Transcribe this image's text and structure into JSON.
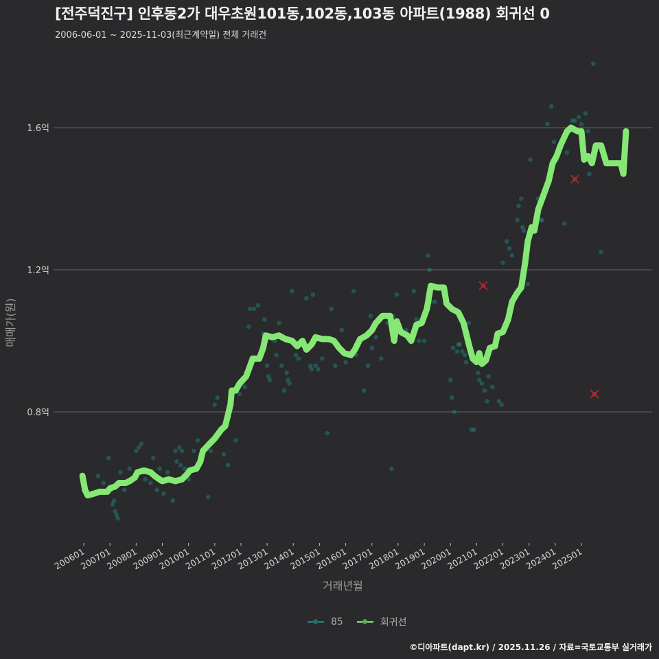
{
  "header": {
    "title": "[전주덕진구] 인후동2가 대우초원101동,102동,103동 아파트(1988) 회귀선 0",
    "subtitle": "2006-06-01 ~ 2025-11-03(최근계약일) 전체 거래건"
  },
  "axes": {
    "ylabel": "매매가(원)",
    "xlabel": "거래년월"
  },
  "legend": {
    "items": [
      {
        "label": "85",
        "color": "#1f8a85"
      },
      {
        "label": "회귀선",
        "color": "#86e874"
      }
    ]
  },
  "footer": {
    "credit": "©디아파트(dapt.kr) / 2025.11.26 / 자료=국토교통부 실거래가"
  },
  "colors": {
    "background": "#2a292b",
    "grid": "#5a5a5a",
    "scatter": "#1f8a85",
    "regression": "#86e874",
    "outlier": "#c0262c"
  },
  "chart_data": {
    "type": "scatter",
    "title": "[전주덕진구] 인후동2가 대우초원101동,102동,103동 아파트(1988) 회귀선",
    "subtitle": "2006-06-01 ~ 2025-11-03(최근계약일) 전체 거래건",
    "xlabel": "거래년월",
    "ylabel": "매매가(원)",
    "x_ticks": [
      "200601",
      "200701",
      "200801",
      "200901",
      "201001",
      "201101",
      "201201",
      "201301",
      "201401",
      "201501",
      "201601",
      "201701",
      "201801",
      "201901",
      "202001",
      "202101",
      "202201",
      "202301",
      "202401",
      "202501"
    ],
    "y_ticks": [
      {
        "value": 0.8,
        "label": "0.8억"
      },
      {
        "value": 1.2,
        "label": "1.2억"
      },
      {
        "value": 1.6,
        "label": "1.6억"
      }
    ],
    "ylim": [
      0.46,
      1.78
    ],
    "grid": true,
    "legend_position": "bottom",
    "series": [
      {
        "name": "85",
        "type": "scatter",
        "points": [
          [
            2006.55,
            0.62
          ],
          [
            2006.75,
            0.6
          ],
          [
            2006.95,
            0.67
          ],
          [
            2007.05,
            0.58
          ],
          [
            2007.1,
            0.54
          ],
          [
            2007.2,
            0.52
          ],
          [
            2007.15,
            0.55
          ],
          [
            2007.3,
            0.5
          ],
          [
            2007.25,
            0.51
          ],
          [
            2007.4,
            0.63
          ],
          [
            2007.55,
            0.58
          ],
          [
            2007.75,
            0.64
          ],
          [
            2008.0,
            0.69
          ],
          [
            2008.1,
            0.7
          ],
          [
            2008.2,
            0.71
          ],
          [
            2008.35,
            0.61
          ],
          [
            2008.55,
            0.6
          ],
          [
            2008.65,
            0.67
          ],
          [
            2008.8,
            0.58
          ],
          [
            2008.9,
            0.64
          ],
          [
            2009.05,
            0.57
          ],
          [
            2009.2,
            0.63
          ],
          [
            2009.4,
            0.55
          ],
          [
            2009.5,
            0.69
          ],
          [
            2009.55,
            0.66
          ],
          [
            2009.65,
            0.7
          ],
          [
            2009.7,
            0.65
          ],
          [
            2009.75,
            0.69
          ],
          [
            2009.85,
            0.64
          ],
          [
            2009.9,
            0.62
          ],
          [
            2010.0,
            0.61
          ],
          [
            2010.2,
            0.69
          ],
          [
            2010.35,
            0.72
          ],
          [
            2010.75,
            0.56
          ],
          [
            2010.85,
            0.69
          ],
          [
            2011.0,
            0.82
          ],
          [
            2011.1,
            0.84
          ],
          [
            2011.2,
            0.75
          ],
          [
            2011.35,
            0.68
          ],
          [
            2011.5,
            0.65
          ],
          [
            2011.8,
            0.72
          ],
          [
            2011.95,
            0.85
          ],
          [
            2012.05,
            0.88
          ],
          [
            2012.15,
            0.87
          ],
          [
            2012.3,
            1.04
          ],
          [
            2012.35,
            1.09
          ],
          [
            2012.5,
            1.09
          ],
          [
            2012.65,
            1.1
          ],
          [
            2012.85,
            1.02
          ],
          [
            2012.9,
            1.06
          ],
          [
            2013.0,
            0.93
          ],
          [
            2013.05,
            0.9
          ],
          [
            2013.1,
            0.89
          ],
          [
            2013.3,
            1.0
          ],
          [
            2013.35,
            0.96
          ],
          [
            2013.45,
            1.05
          ],
          [
            2013.55,
            0.93
          ],
          [
            2013.65,
            0.86
          ],
          [
            2013.75,
            0.91
          ],
          [
            2013.8,
            0.89
          ],
          [
            2013.85,
            0.88
          ],
          [
            2013.95,
            1.14
          ],
          [
            2014.1,
            0.96
          ],
          [
            2014.2,
            0.95
          ],
          [
            2014.5,
            1.12
          ],
          [
            2014.65,
            0.93
          ],
          [
            2014.7,
            0.92
          ],
          [
            2014.75,
            1.13
          ],
          [
            2014.85,
            0.93
          ],
          [
            2014.95,
            0.92
          ],
          [
            2015.1,
            0.95
          ],
          [
            2015.3,
            0.74
          ],
          [
            2015.45,
            1.09
          ],
          [
            2015.6,
            0.93
          ],
          [
            2015.85,
            1.03
          ],
          [
            2016.0,
            0.94
          ],
          [
            2016.3,
            1.14
          ],
          [
            2016.4,
            0.96
          ],
          [
            2016.5,
            0.99
          ],
          [
            2016.7,
            0.86
          ],
          [
            2016.85,
            0.93
          ],
          [
            2016.95,
            1.07
          ],
          [
            2017.0,
            0.98
          ],
          [
            2017.15,
            1.01
          ],
          [
            2017.35,
            0.95
          ],
          [
            2017.6,
            1.05
          ],
          [
            2017.75,
            0.64
          ],
          [
            2017.8,
            1.07
          ],
          [
            2017.95,
            1.13
          ],
          [
            2018.3,
            1.03
          ],
          [
            2018.6,
            1.14
          ],
          [
            2018.7,
            1.06
          ],
          [
            2018.8,
            1.0
          ],
          [
            2018.95,
            1.06
          ],
          [
            2019.0,
            1.0
          ],
          [
            2019.15,
            1.24
          ],
          [
            2019.2,
            1.2
          ],
          [
            2019.25,
            1.11
          ],
          [
            2019.4,
            1.11
          ],
          [
            2020.0,
            0.89
          ],
          [
            2020.05,
            0.84
          ],
          [
            2020.1,
            0.98
          ],
          [
            2020.15,
            0.8
          ],
          [
            2020.25,
            0.97
          ],
          [
            2020.3,
            0.99
          ],
          [
            2020.35,
            0.99
          ],
          [
            2020.45,
            0.97
          ],
          [
            2020.55,
            0.96
          ],
          [
            2020.6,
            0.94
          ],
          [
            2020.7,
            1.05
          ],
          [
            2020.8,
            0.75
          ],
          [
            2020.9,
            0.75
          ],
          [
            2020.95,
            0.95
          ],
          [
            2021.05,
            0.91
          ],
          [
            2021.1,
            0.89
          ],
          [
            2021.2,
            0.88
          ],
          [
            2021.3,
            0.86
          ],
          [
            2021.4,
            0.83
          ],
          [
            2021.45,
            0.9
          ],
          [
            2021.6,
            0.87
          ],
          [
            2021.85,
            0.83
          ],
          [
            2021.95,
            0.82
          ],
          [
            2022.0,
            1.22
          ],
          [
            2022.15,
            1.28
          ],
          [
            2022.25,
            1.26
          ],
          [
            2022.35,
            1.24
          ],
          [
            2022.55,
            1.34
          ],
          [
            2022.6,
            1.38
          ],
          [
            2022.7,
            1.4
          ],
          [
            2022.75,
            1.32
          ],
          [
            2022.8,
            1.31
          ],
          [
            2022.95,
            1.16
          ],
          [
            2023.05,
            1.51
          ],
          [
            2023.35,
            1.4
          ],
          [
            2023.45,
            1.34
          ],
          [
            2023.5,
            1.34
          ],
          [
            2023.7,
            1.61
          ],
          [
            2023.85,
            1.66
          ],
          [
            2023.95,
            1.56
          ],
          [
            2024.05,
            1.51
          ],
          [
            2024.35,
            1.33
          ],
          [
            2024.45,
            1.53
          ],
          [
            2024.55,
            1.59
          ],
          [
            2024.65,
            1.62
          ],
          [
            2024.75,
            1.62
          ],
          [
            2024.9,
            1.63
          ],
          [
            2025.0,
            1.61
          ],
          [
            2025.15,
            1.64
          ],
          [
            2025.25,
            1.59
          ],
          [
            2025.3,
            1.47
          ],
          [
            2025.45,
            1.78
          ],
          [
            2025.75,
            1.25
          ]
        ]
      },
      {
        "name": "회귀선",
        "type": "line",
        "points": [
          [
            2005.95,
            0.62
          ],
          [
            2006.05,
            0.58
          ],
          [
            2006.15,
            0.565
          ],
          [
            2006.4,
            0.57
          ],
          [
            2006.6,
            0.575
          ],
          [
            2006.9,
            0.575
          ],
          [
            2007.0,
            0.585
          ],
          [
            2007.2,
            0.59
          ],
          [
            2007.35,
            0.6
          ],
          [
            2007.6,
            0.6
          ],
          [
            2007.75,
            0.605
          ],
          [
            2007.95,
            0.615
          ],
          [
            2008.05,
            0.63
          ],
          [
            2008.3,
            0.635
          ],
          [
            2008.55,
            0.63
          ],
          [
            2008.7,
            0.62
          ],
          [
            2008.85,
            0.612
          ],
          [
            2009.0,
            0.605
          ],
          [
            2009.25,
            0.61
          ],
          [
            2009.5,
            0.605
          ],
          [
            2009.75,
            0.61
          ],
          [
            2009.95,
            0.625
          ],
          [
            2010.05,
            0.635
          ],
          [
            2010.3,
            0.64
          ],
          [
            2010.45,
            0.66
          ],
          [
            2010.55,
            0.69
          ],
          [
            2010.8,
            0.71
          ],
          [
            2011.0,
            0.725
          ],
          [
            2011.25,
            0.75
          ],
          [
            2011.4,
            0.76
          ],
          [
            2011.5,
            0.79
          ],
          [
            2011.6,
            0.82
          ],
          [
            2011.65,
            0.86
          ],
          [
            2011.8,
            0.86
          ],
          [
            2011.95,
            0.88
          ],
          [
            2012.2,
            0.9
          ],
          [
            2012.45,
            0.95
          ],
          [
            2012.7,
            0.95
          ],
          [
            2012.85,
            0.98
          ],
          [
            2012.95,
            1.015
          ],
          [
            2013.2,
            1.01
          ],
          [
            2013.45,
            1.015
          ],
          [
            2013.7,
            1.005
          ],
          [
            2013.95,
            1.0
          ],
          [
            2014.15,
            0.985
          ],
          [
            2014.35,
            1.0
          ],
          [
            2014.5,
            0.975
          ],
          [
            2014.7,
            0.99
          ],
          [
            2014.85,
            1.01
          ],
          [
            2015.1,
            1.005
          ],
          [
            2015.35,
            1.005
          ],
          [
            2015.55,
            1.0
          ],
          [
            2015.75,
            0.98
          ],
          [
            2015.95,
            0.965
          ],
          [
            2016.2,
            0.96
          ],
          [
            2016.35,
            0.975
          ],
          [
            2016.55,
            1.005
          ],
          [
            2016.8,
            1.015
          ],
          [
            2017.0,
            1.03
          ],
          [
            2017.15,
            1.05
          ],
          [
            2017.4,
            1.07
          ],
          [
            2017.7,
            1.07
          ],
          [
            2017.85,
            1.0
          ],
          [
            2017.95,
            1.055
          ],
          [
            2018.1,
            1.025
          ],
          [
            2018.35,
            1.015
          ],
          [
            2018.5,
            1.0
          ],
          [
            2018.7,
            1.045
          ],
          [
            2018.9,
            1.05
          ],
          [
            2019.1,
            1.09
          ],
          [
            2019.25,
            1.155
          ],
          [
            2019.5,
            1.15
          ],
          [
            2019.75,
            1.15
          ],
          [
            2019.85,
            1.105
          ],
          [
            2020.05,
            1.09
          ],
          [
            2020.3,
            1.08
          ],
          [
            2020.5,
            1.05
          ],
          [
            2020.7,
            0.99
          ],
          [
            2020.85,
            0.95
          ],
          [
            2021.0,
            0.94
          ],
          [
            2021.1,
            0.965
          ],
          [
            2021.2,
            0.935
          ],
          [
            2021.35,
            0.945
          ],
          [
            2021.5,
            0.98
          ],
          [
            2021.7,
            0.985
          ],
          [
            2021.8,
            1.02
          ],
          [
            2022.0,
            1.025
          ],
          [
            2022.2,
            1.06
          ],
          [
            2022.35,
            1.11
          ],
          [
            2022.55,
            1.135
          ],
          [
            2022.7,
            1.15
          ],
          [
            2022.85,
            1.22
          ],
          [
            2022.95,
            1.28
          ],
          [
            2023.1,
            1.32
          ],
          [
            2023.2,
            1.31
          ],
          [
            2023.35,
            1.37
          ],
          [
            2023.5,
            1.4
          ],
          [
            2023.6,
            1.42
          ],
          [
            2023.75,
            1.45
          ],
          [
            2023.9,
            1.5
          ],
          [
            2024.05,
            1.52
          ],
          [
            2024.2,
            1.55
          ],
          [
            2024.45,
            1.59
          ],
          [
            2024.6,
            1.6
          ],
          [
            2024.85,
            1.59
          ],
          [
            2025.0,
            1.59
          ],
          [
            2025.1,
            1.51
          ],
          [
            2025.25,
            1.52
          ],
          [
            2025.4,
            1.5
          ],
          [
            2025.55,
            1.55
          ],
          [
            2025.75,
            1.55
          ],
          [
            2025.95,
            1.5
          ],
          [
            2026.2,
            1.5
          ],
          [
            2026.5,
            1.5
          ],
          [
            2026.6,
            1.47
          ],
          [
            2026.7,
            1.59
          ]
        ]
      },
      {
        "name": "outliers",
        "type": "scatter-x",
        "points": [
          [
            2021.25,
            1.155
          ],
          [
            2024.75,
            1.455
          ],
          [
            2025.5,
            0.85
          ]
        ]
      }
    ]
  }
}
